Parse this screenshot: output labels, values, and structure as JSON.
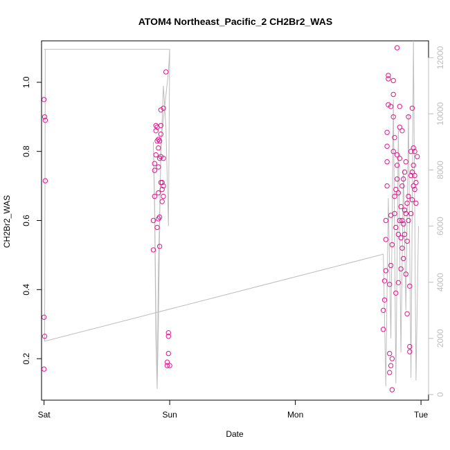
{
  "chart_data": {
    "type": "scatter",
    "title": "ATOM4 Northeast_Pacific_2 CH2Br2_WAS",
    "xlabel": "Date",
    "ylabel": "CH2Br2_WAS",
    "xlim": [
      -0.02,
      3.06
    ],
    "ylim": [
      0.08,
      1.12
    ],
    "y2lim": [
      -200,
      12600
    ],
    "x_ticks": [
      {
        "value": 0,
        "label": "Sat"
      },
      {
        "value": 1,
        "label": "Sun"
      },
      {
        "value": 2,
        "label": "Mon"
      },
      {
        "value": 3,
        "label": "Tue"
      }
    ],
    "y_ticks": [
      {
        "value": 0.2,
        "label": "0.2"
      },
      {
        "value": 0.4,
        "label": "0.4"
      },
      {
        "value": 0.6,
        "label": "0.6"
      },
      {
        "value": 0.8,
        "label": "0.8"
      },
      {
        "value": 1.0,
        "label": "1.0"
      }
    ],
    "y2_ticks": [
      {
        "value": 0,
        "label": "0"
      },
      {
        "value": 2000,
        "label": "2000"
      },
      {
        "value": 4000,
        "label": "4000"
      },
      {
        "value": 6000,
        "label": "6000"
      },
      {
        "value": 8000,
        "label": "8000"
      },
      {
        "value": 10000,
        "label": "10000"
      },
      {
        "value": 12000,
        "label": "12000"
      }
    ],
    "point_color": "#e0158c",
    "line_color": "#bdbdbd",
    "grid": false,
    "series": [
      {
        "kind": "points",
        "axis": "left",
        "x": [
          0.0,
          0.005,
          0.01,
          0.01,
          0.0,
          0.005,
          0.0,
          0.87,
          0.87,
          0.88,
          0.88,
          0.88,
          0.89,
          0.89,
          0.89,
          0.9,
          0.9,
          0.9,
          0.91,
          0.91,
          0.91,
          0.91,
          0.91,
          0.92,
          0.92,
          0.92,
          0.92,
          0.93,
          0.93,
          0.93,
          0.93,
          0.93,
          0.94,
          0.94,
          0.94,
          0.95,
          0.95,
          0.95,
          0.95,
          0.97,
          0.98,
          0.98,
          0.99,
          0.99,
          0.99,
          1.0,
          2.7,
          2.7,
          2.71,
          2.71,
          2.72,
          2.72,
          2.72,
          2.73,
          2.73,
          2.73,
          2.73,
          2.74,
          2.74,
          2.74,
          2.75,
          2.75,
          2.75,
          2.76,
          2.76,
          2.76,
          2.76,
          2.77,
          2.77,
          2.77,
          2.78,
          2.78,
          2.78,
          2.78,
          2.79,
          2.79,
          2.79,
          2.8,
          2.8,
          2.8,
          2.81,
          2.81,
          2.81,
          2.81,
          2.82,
          2.82,
          2.82,
          2.83,
          2.83,
          2.83,
          2.83,
          2.84,
          2.84,
          2.84,
          2.85,
          2.85,
          2.85,
          2.85,
          2.86,
          2.86,
          2.86,
          2.87,
          2.87,
          2.87,
          2.88,
          2.88,
          2.88,
          2.89,
          2.89,
          2.89,
          2.9,
          2.9,
          2.9,
          2.91,
          2.91,
          2.91,
          2.92,
          2.92,
          2.92,
          2.93,
          2.93,
          2.93,
          2.94,
          2.94,
          2.94,
          2.95,
          2.95,
          2.95,
          2.96,
          2.96,
          2.97
        ],
        "y": [
          0.95,
          0.9,
          0.89,
          0.715,
          0.32,
          0.265,
          0.17,
          0.515,
          0.6,
          0.67,
          0.745,
          0.765,
          0.79,
          0.86,
          0.875,
          0.58,
          0.83,
          0.87,
          0.605,
          0.68,
          0.755,
          0.81,
          0.835,
          0.525,
          0.61,
          0.78,
          0.83,
          0.71,
          0.785,
          0.85,
          0.875,
          0.92,
          0.655,
          0.69,
          0.71,
          0.67,
          0.7,
          0.78,
          0.925,
          1.03,
          0.19,
          0.18,
          0.275,
          0.265,
          0.215,
          0.18,
          0.285,
          0.34,
          0.37,
          0.425,
          0.455,
          0.545,
          0.6,
          0.7,
          0.77,
          0.815,
          0.855,
          0.935,
          1.01,
          1.02,
          0.16,
          0.215,
          0.415,
          0.18,
          0.47,
          0.615,
          0.93,
          0.11,
          0.2,
          0.53,
          0.8,
          0.9,
          0.965,
          1.005,
          0.62,
          0.67,
          0.84,
          0.39,
          0.58,
          0.69,
          0.72,
          0.76,
          0.79,
          1.1,
          0.42,
          0.56,
          0.68,
          0.6,
          0.78,
          0.87,
          0.93,
          0.46,
          0.55,
          0.64,
          0.52,
          0.6,
          0.7,
          0.86,
          0.49,
          0.59,
          0.72,
          0.56,
          0.63,
          0.74,
          0.445,
          0.62,
          0.77,
          0.33,
          0.54,
          0.65,
          0.9,
          0.6,
          0.67,
          0.22,
          0.235,
          0.41,
          0.62,
          0.73,
          0.8,
          0.66,
          0.74,
          0.925,
          0.7,
          0.76,
          0.81,
          0.69,
          0.73,
          0.8,
          0.65,
          0.71,
          0.785
        ],
        "note_count": 0
      },
      {
        "kind": "line",
        "axis": "right",
        "name": "",
        "x": [
          0.0,
          0.005,
          0.99,
          1.0,
          0.99,
          0.93,
          0.92,
          0.91,
          0.9,
          0.89,
          0.88,
          0.87,
          0.88,
          0.89,
          0.9,
          0.91,
          0.93,
          0.95,
          0.97,
          0.99,
          1.0,
          0.01,
          0.005,
          2.7,
          2.72,
          2.74,
          2.76,
          2.78,
          2.8,
          2.82,
          2.84,
          2.86,
          2.88,
          2.9,
          2.92,
          2.94,
          2.96,
          2.98
        ],
        "y": [
          12300,
          12300,
          12300,
          12300,
          11500,
          9000,
          6000,
          2500,
          200,
          3000,
          7000,
          9000,
          6500,
          2000,
          200,
          4500,
          8500,
          11000,
          9500,
          6000,
          12300,
          12300,
          1900,
          5000,
          300,
          7000,
          2000,
          10500,
          400,
          9500,
          1500,
          8000,
          3000,
          10000,
          600,
          12600,
          500,
          6000
        ]
      }
    ]
  }
}
